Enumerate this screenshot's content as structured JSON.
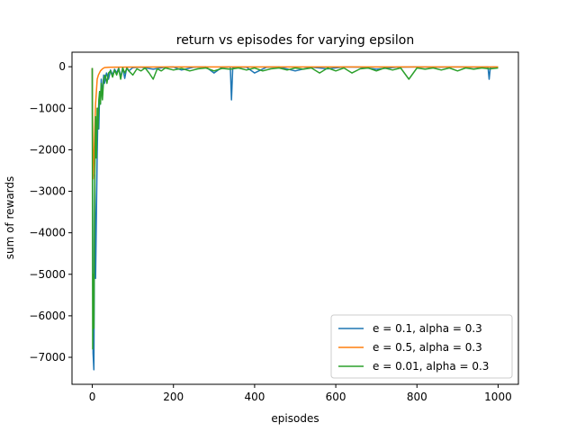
{
  "chart_data": {
    "type": "line",
    "title": "return vs episodes for varying epsilon",
    "xlabel": "episodes",
    "ylabel": "sum of rewards",
    "xlim": [
      -50,
      1050
    ],
    "ylim": [
      -7650,
      350
    ],
    "xticks": [
      0,
      200,
      400,
      600,
      800,
      1000
    ],
    "yticks": [
      0,
      -1000,
      -2000,
      -3000,
      -4000,
      -5000,
      -6000,
      -7000
    ],
    "grid": false,
    "legend_position": "lower right",
    "series": [
      {
        "name": "e = 0.1, alpha = 0.3",
        "color": "#1f77b4",
        "x": [
          0,
          2,
          4,
          6,
          8,
          10,
          12,
          14,
          16,
          18,
          20,
          22,
          25,
          28,
          30,
          35,
          40,
          45,
          50,
          55,
          60,
          65,
          70,
          75,
          80,
          85,
          90,
          100,
          120,
          150,
          180,
          200,
          220,
          250,
          280,
          300,
          320,
          340,
          343,
          346,
          350,
          380,
          400,
          430,
          460,
          500,
          540,
          580,
          620,
          660,
          700,
          750,
          800,
          850,
          900,
          950,
          975,
          978,
          981,
          990,
          1000
        ],
        "y": [
          -40,
          -6900,
          -7300,
          -2600,
          -5100,
          -3600,
          -2100,
          -1000,
          -1500,
          -600,
          -900,
          -300,
          -700,
          -200,
          -400,
          -150,
          -300,
          -80,
          -200,
          -60,
          -150,
          -30,
          -250,
          -20,
          -280,
          -10,
          -100,
          -20,
          -10,
          -60,
          -10,
          -5,
          -80,
          -10,
          -5,
          -150,
          -10,
          -5,
          -800,
          -30,
          -10,
          -10,
          -150,
          -10,
          -5,
          -100,
          -10,
          -50,
          -5,
          -10,
          -60,
          -10,
          -5,
          -10,
          -5,
          -10,
          -5,
          -300,
          -10,
          -5,
          -10
        ]
      },
      {
        "name": "e = 0.5, alpha = 0.3",
        "color": "#ff7f0e",
        "x": [
          0,
          2,
          4,
          6,
          8,
          10,
          12,
          15,
          20,
          25,
          30,
          40,
          60,
          100,
          200,
          300,
          400,
          500,
          600,
          700,
          800,
          900,
          1000
        ],
        "y": [
          -30,
          -2700,
          -2300,
          -1500,
          -900,
          -600,
          -300,
          -200,
          -100,
          -50,
          -20,
          -15,
          -10,
          -8,
          -5,
          -5,
          -5,
          -5,
          -5,
          -5,
          -5,
          -5,
          -5
        ]
      },
      {
        "name": "e = 0.01, alpha = 0.3",
        "color": "#2ca02c",
        "x": [
          0,
          1,
          2,
          4,
          6,
          8,
          10,
          12,
          14,
          16,
          18,
          20,
          22,
          25,
          28,
          32,
          36,
          40,
          45,
          50,
          55,
          60,
          65,
          70,
          75,
          80,
          85,
          90,
          100,
          110,
          120,
          130,
          140,
          150,
          160,
          170,
          180,
          200,
          220,
          240,
          260,
          280,
          300,
          320,
          340,
          360,
          380,
          400,
          420,
          440,
          460,
          480,
          500,
          520,
          540,
          560,
          580,
          600,
          620,
          640,
          660,
          680,
          700,
          720,
          740,
          760,
          780,
          800,
          820,
          840,
          860,
          880,
          900,
          920,
          940,
          960,
          980,
          1000
        ],
        "y": [
          -30,
          -6800,
          -5000,
          -6300,
          -2800,
          -1200,
          -2200,
          -1000,
          -1500,
          -800,
          -600,
          -900,
          -400,
          -800,
          -300,
          -200,
          -400,
          -150,
          -100,
          -250,
          -80,
          -200,
          -50,
          -300,
          -30,
          -150,
          -40,
          -100,
          -200,
          -50,
          -100,
          -30,
          -150,
          -300,
          -50,
          -100,
          -30,
          -80,
          -40,
          -100,
          -50,
          -30,
          -100,
          -40,
          -60,
          -30,
          -80,
          -30,
          -100,
          -50,
          -30,
          -80,
          -30,
          -60,
          -30,
          -150,
          -30,
          -100,
          -30,
          -150,
          -50,
          -30,
          -100,
          -30,
          -80,
          -30,
          -300,
          -30,
          -60,
          -30,
          -80,
          -30,
          -100,
          -30,
          -60,
          -30,
          -50,
          -30
        ]
      }
    ]
  }
}
